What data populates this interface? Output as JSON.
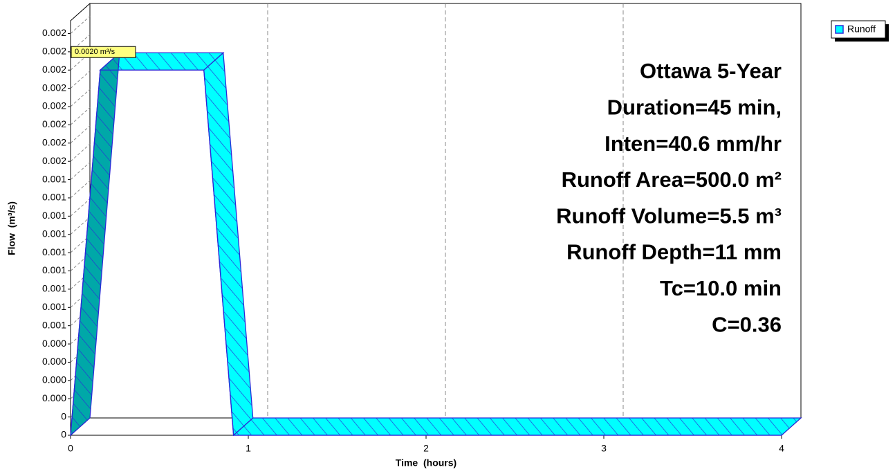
{
  "chart_data": {
    "type": "area3d",
    "xlabel": "Time  (hours)",
    "ylabel": "Flow  (m³/s)",
    "x": [
      0,
      0.167,
      0.75,
      0.917,
      4
    ],
    "series": [
      {
        "name": "Runoff",
        "color": "#00ffff",
        "values": [
          0,
          0.002,
          0.002,
          0,
          0
        ]
      }
    ],
    "peak_label": "0.0020 m³/s",
    "annotations": [
      "Ottawa 5-Year",
      "Duration=45 min,",
      "Inten=40.6 mm/hr",
      "Runoff Area=500.0 m²",
      "Runoff Volume=5.5 m³",
      "Runoff Depth=11 mm",
      "Tc=10.0 min",
      "C=0.36"
    ],
    "xlim": [
      0,
      4
    ],
    "xticks": [
      0,
      1,
      2,
      3,
      4
    ],
    "ylim": [
      0,
      0.00227
    ],
    "yticks": [
      0,
      {
        "value": 0.0001,
        "label": "0"
      },
      {
        "value": 0.0002,
        "label": "0.000"
      },
      {
        "value": 0.0003,
        "label": "0.000"
      },
      {
        "value": 0.0004,
        "label": "0.000"
      },
      {
        "value": 0.0005,
        "label": "0.000"
      },
      {
        "value": 0.0006,
        "label": "0.001"
      },
      {
        "value": 0.0007,
        "label": "0.001"
      },
      {
        "value": 0.0008,
        "label": "0.001"
      },
      {
        "value": 0.0009,
        "label": "0.001"
      },
      {
        "value": 0.001,
        "label": "0.001"
      },
      {
        "value": 0.0011,
        "label": "0.001"
      },
      {
        "value": 0.0012,
        "label": "0.001"
      },
      {
        "value": 0.0013,
        "label": "0.001"
      },
      {
        "value": 0.0014,
        "label": "0.001"
      },
      {
        "value": 0.0015,
        "label": "0.002"
      },
      {
        "value": 0.0016,
        "label": "0.002"
      },
      {
        "value": 0.0017,
        "label": "0.002"
      },
      {
        "value": 0.0018,
        "label": "0.002"
      },
      {
        "value": 0.0019,
        "label": "0.002"
      },
      {
        "value": 0.002,
        "label": "0.002"
      },
      {
        "value": 0.0021,
        "label": "0.002"
      },
      {
        "value": 0.0022,
        "label": "0.002"
      }
    ],
    "grid": true,
    "legend": "top-right"
  }
}
